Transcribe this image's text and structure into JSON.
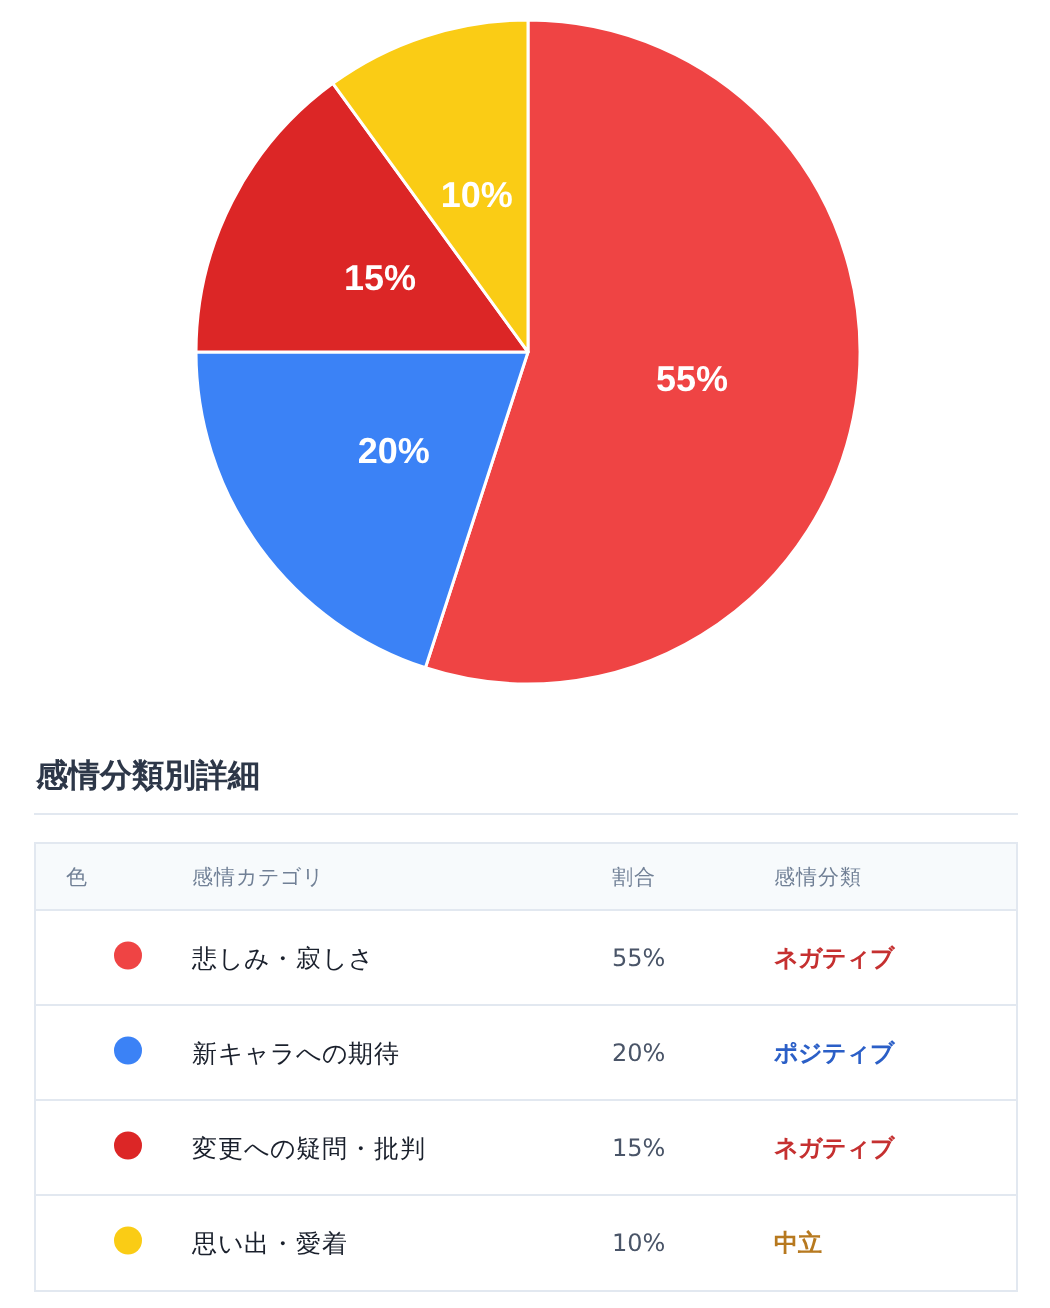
{
  "chart_data": {
    "type": "pie",
    "categories": [
      "悲しみ・寂しさ",
      "新キャラへの期待",
      "変更への疑問・批判",
      "思い出・愛着"
    ],
    "values": [
      55,
      20,
      15,
      10
    ],
    "colors": [
      "#ef4444",
      "#3b82f6",
      "#dc2626",
      "#facc15"
    ],
    "value_labels": [
      "55%",
      "20%",
      "15%",
      "10%"
    ],
    "legend": "bottom",
    "legend_title": "感情分類別詳細",
    "annotations": [
      "色",
      "感情カテゴリ",
      "割合",
      "感情分類",
      {
        "text": "ネガティブ",
        "x": "悲しみ・寂しさ"
      },
      {
        "text": "ポジティブ",
        "x": "新キャラへの期待"
      },
      {
        "text": "ネガティブ",
        "x": "変更への疑問・批判"
      },
      {
        "text": "中立",
        "x": "思い出・愛着"
      }
    ]
  }
}
